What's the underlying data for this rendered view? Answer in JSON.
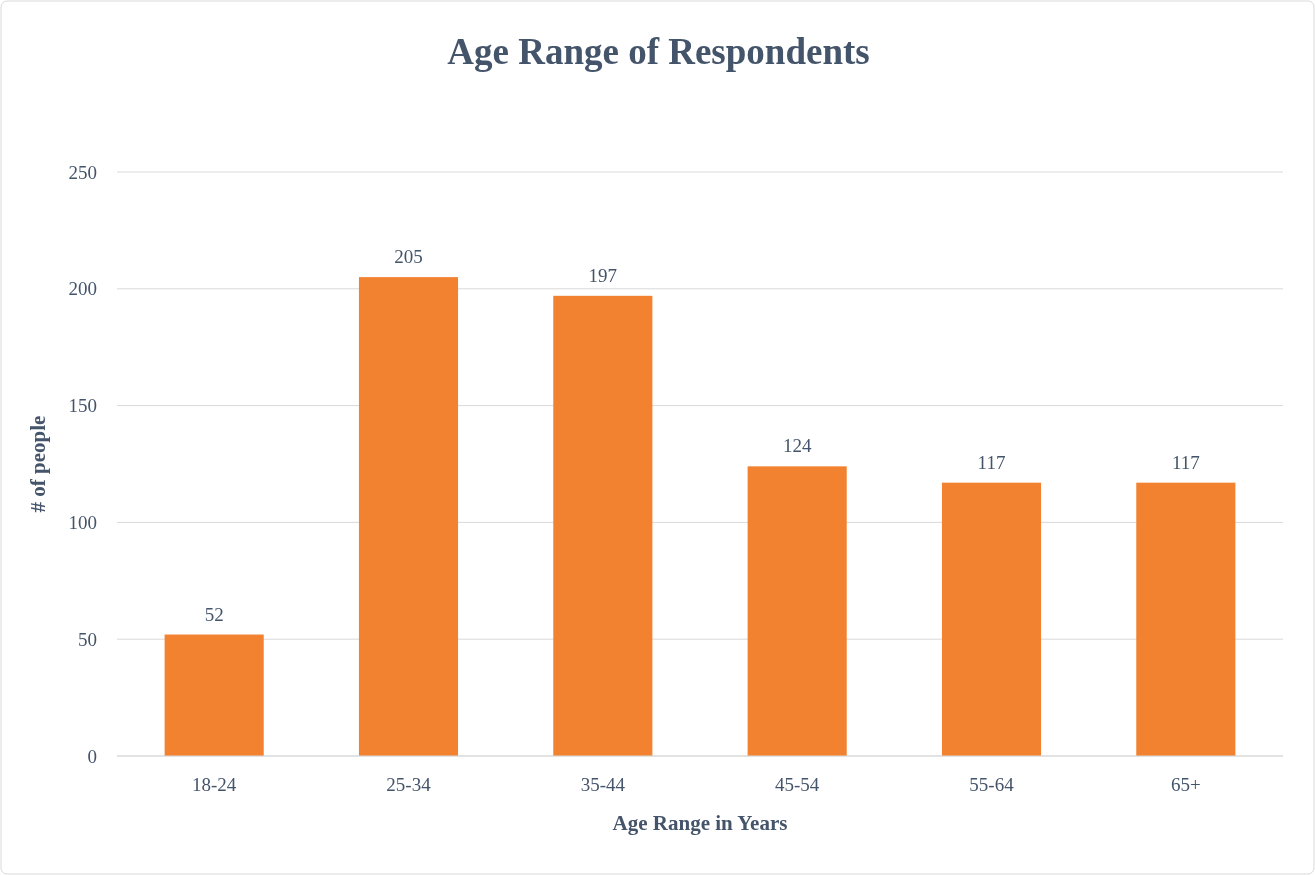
{
  "chart_data": {
    "type": "bar",
    "title": "Age Range of Respondents",
    "xlabel": "Age Range in Years",
    "ylabel": "# of people",
    "categories": [
      "18-24",
      "25-34",
      "35-44",
      "45-54",
      "55-64",
      "65+"
    ],
    "values": [
      52,
      205,
      197,
      124,
      117,
      117
    ],
    "color": "#f28130",
    "ylim": [
      0,
      250
    ],
    "yticks": [
      0,
      50,
      100,
      150,
      200,
      250
    ],
    "grid": "y",
    "data_labels": true
  }
}
